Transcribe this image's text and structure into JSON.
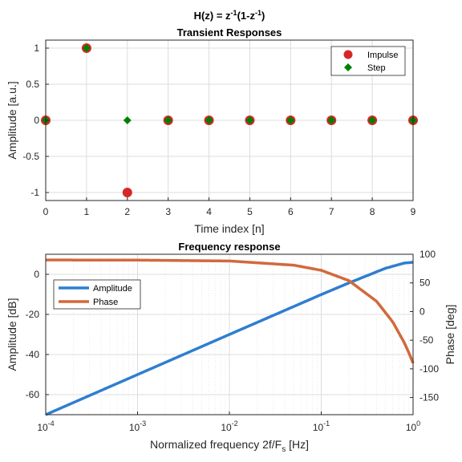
{
  "figure": {
    "main_title_prefix": "H(z) = z",
    "main_title_exp1": "-1",
    "main_title_mid": "(1-z",
    "main_title_exp2": "-1",
    "main_title_suffix": ")"
  },
  "chart_data": [
    {
      "type": "scatter",
      "title": "Transient Responses",
      "xlabel": "Time index [n]",
      "ylabel": "Amplitude [a.u.]",
      "xlim": [
        0,
        9
      ],
      "ylim": [
        -1.1,
        1.1
      ],
      "xticks": [
        0,
        1,
        2,
        3,
        4,
        5,
        6,
        7,
        8,
        9
      ],
      "yticks": [
        1,
        0.5,
        0,
        -0.5,
        -1
      ],
      "ytick_labels": [
        "1",
        "0.5",
        "0",
        "-0.5",
        "-1"
      ],
      "grid": true,
      "legend_position": "top-right",
      "series": [
        {
          "name": "Impulse",
          "marker": "circle",
          "color": "#d62728",
          "x": [
            0,
            1,
            2,
            3,
            4,
            5,
            6,
            7,
            8,
            9
          ],
          "y": [
            0,
            1,
            -1,
            0,
            0,
            0,
            0,
            0,
            0,
            0
          ]
        },
        {
          "name": "Step",
          "marker": "diamond",
          "color": "#008000",
          "x": [
            0,
            1,
            2,
            3,
            4,
            5,
            6,
            7,
            8,
            9
          ],
          "y": [
            0,
            1,
            0,
            0,
            0,
            0,
            0,
            0,
            0,
            0
          ]
        }
      ]
    },
    {
      "type": "line",
      "title": "Frequency response",
      "xlabel_prefix": "Normalized frequency 2f/F",
      "xlabel_sub": "s",
      "xlabel_suffix": " [Hz]",
      "ylabel": "Amplitude [dB]",
      "ylabel_right": "Phase [deg]",
      "x_scale": "log",
      "xlim": [
        0.0001,
        1
      ],
      "ylim_left": [
        -70,
        10
      ],
      "ylim_right": [
        -180,
        100
      ],
      "xticks": [
        {
          "base": "10",
          "exp": "-4",
          "value": 0.0001
        },
        {
          "base": "10",
          "exp": "-3",
          "value": 0.001
        },
        {
          "base": "10",
          "exp": "-2",
          "value": 0.01
        },
        {
          "base": "10",
          "exp": "-1",
          "value": 0.1
        },
        {
          "base": "10",
          "exp": "0",
          "value": 1
        }
      ],
      "yticks_left": [
        0,
        -20,
        -40,
        -60
      ],
      "ytick_labels_left": [
        "0",
        "-20",
        "-40",
        "-60"
      ],
      "yticks_right": [
        100,
        50,
        0,
        -50,
        -100,
        -150
      ],
      "ytick_labels_right": [
        "100",
        "50",
        "0",
        "-50",
        "-100",
        "-150"
      ],
      "grid": true,
      "legend_position": "left",
      "series": [
        {
          "name": "Amplitude",
          "axis": "left",
          "color": "#2e7ecf",
          "x": [
            0.0001,
            0.001,
            0.01,
            0.1,
            0.2,
            0.5,
            0.8,
            1
          ],
          "y": [
            -70,
            -50,
            -30,
            -10.1,
            -4.3,
            3,
            5.6,
            6
          ]
        },
        {
          "name": "Phase",
          "axis": "right",
          "color": "#d2693c",
          "x": [
            0.0001,
            0.001,
            0.01,
            0.05,
            0.1,
            0.2,
            0.4,
            0.6,
            0.8,
            0.9,
            1
          ],
          "y": [
            90,
            89.8,
            88.2,
            81,
            72,
            54,
            18,
            -18,
            -54,
            -72,
            -90
          ]
        }
      ]
    }
  ]
}
